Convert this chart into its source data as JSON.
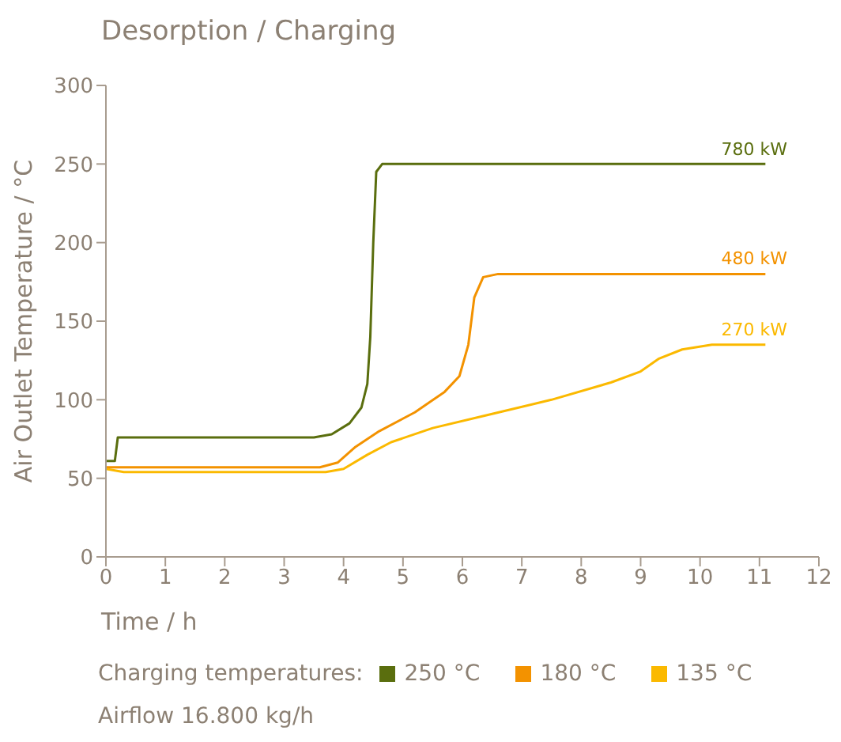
{
  "chart_data": {
    "type": "line",
    "title": "Desorption / Charging",
    "xlabel": "Time / h",
    "ylabel": "Air Outlet Temperature / °C",
    "legend_title": "Charging temperatures:",
    "legend": "bottom",
    "grid": false,
    "marker": "none",
    "line_style": "solid",
    "xlim": [
      0,
      12
    ],
    "xticks": [
      0,
      1,
      2,
      3,
      4,
      5,
      6,
      7,
      8,
      9,
      10,
      11,
      12
    ],
    "ylim": [
      0,
      300
    ],
    "yticks": [
      0,
      50,
      100,
      150,
      200,
      250,
      300
    ],
    "series": [
      {
        "name": "250 °C",
        "color": "#5a6e0e",
        "x": [
          0,
          0.15,
          0.2,
          3.5,
          3.8,
          4.1,
          4.3,
          4.4,
          4.45,
          4.5,
          4.55,
          4.65,
          11.1
        ],
        "values": [
          61,
          61,
          76,
          76,
          78,
          85,
          95,
          110,
          140,
          200,
          245,
          250,
          250
        ]
      },
      {
        "name": "180 °C",
        "color": "#f39200",
        "x": [
          0,
          3.6,
          3.9,
          4.2,
          4.6,
          5.2,
          5.7,
          5.95,
          6.1,
          6.2,
          6.35,
          6.6,
          11.1
        ],
        "values": [
          57,
          57,
          60,
          70,
          80,
          92,
          105,
          115,
          135,
          165,
          178,
          180,
          180
        ]
      },
      {
        "name": "135 °C",
        "color": "#fbb900",
        "x": [
          0,
          0.15,
          0.3,
          3.7,
          4.0,
          4.4,
          4.8,
          5.5,
          6.5,
          7.5,
          8.5,
          9.0,
          9.3,
          9.7,
          10.2,
          11.1
        ],
        "values": [
          56,
          55,
          54,
          54,
          56,
          65,
          73,
          82,
          91,
          100,
          111,
          118,
          126,
          132,
          135,
          135
        ]
      }
    ],
    "annotations": [
      {
        "text": "780 kW",
        "y": 250
      },
      {
        "text": "480 kW",
        "y": 180
      },
      {
        "text": "270 kW",
        "y": 135
      },
      "Airflow 16.800 kg/h"
    ]
  }
}
